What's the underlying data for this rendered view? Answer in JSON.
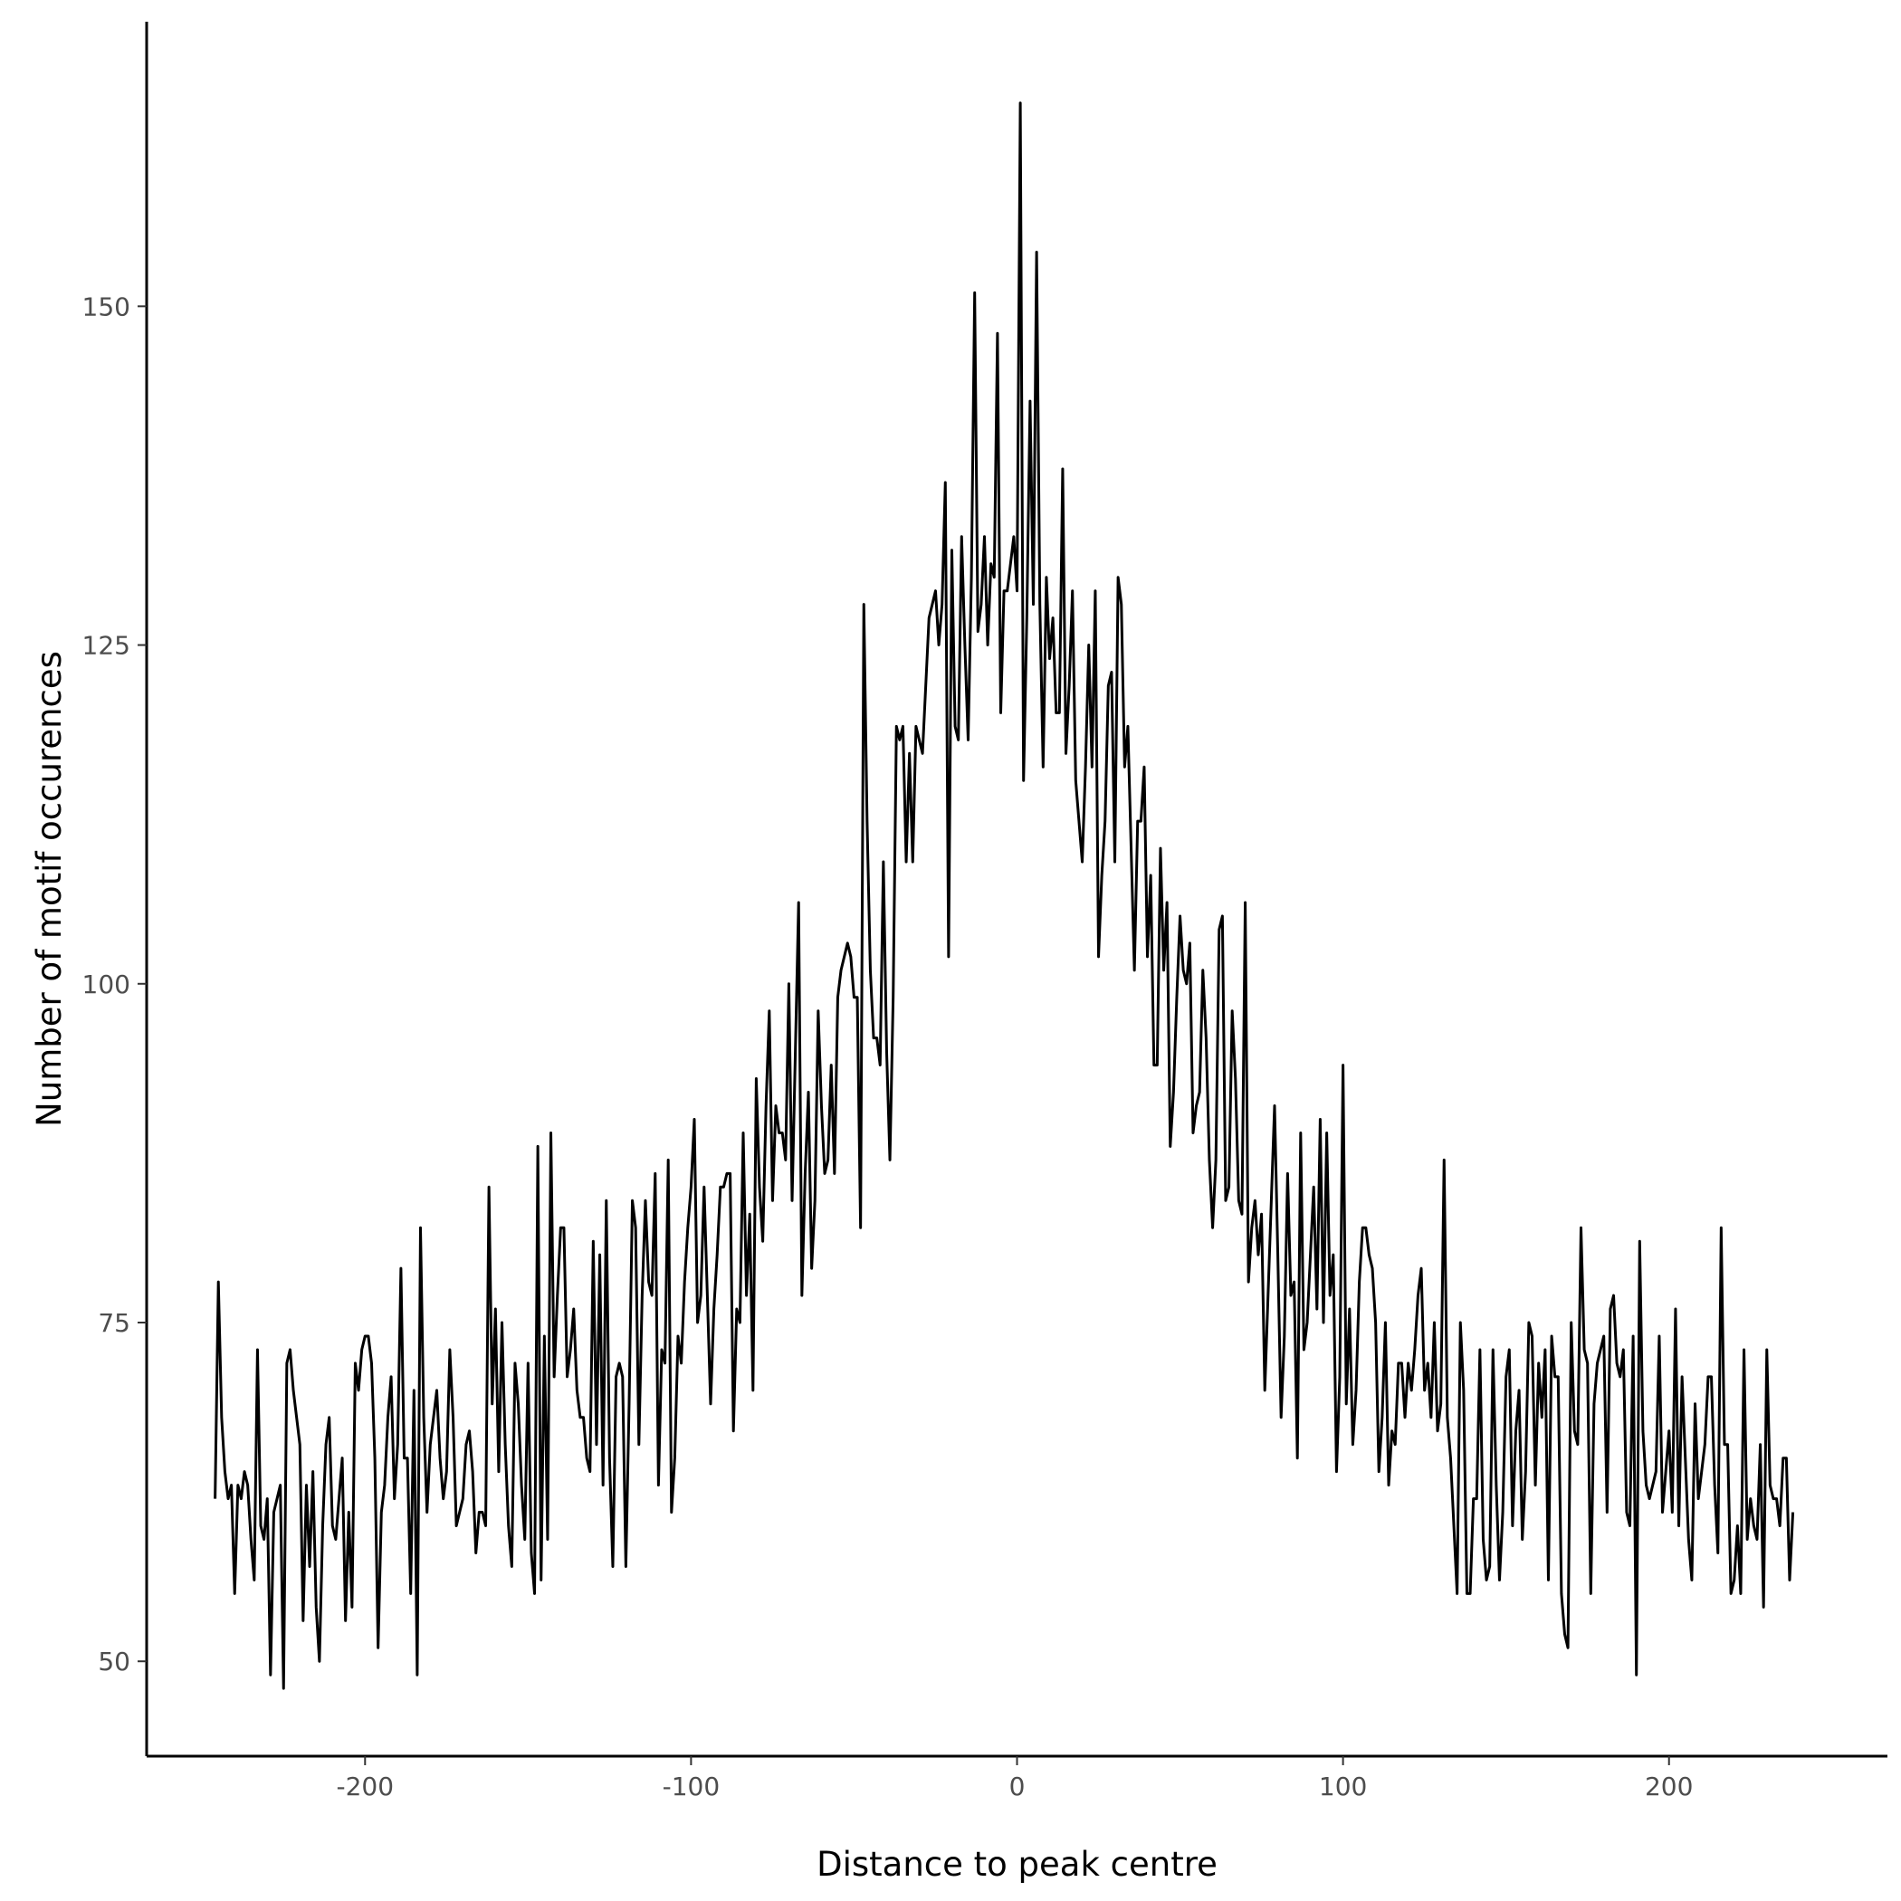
{
  "chart_data": {
    "type": "line",
    "title": "",
    "xlabel": "Distance to peak centre",
    "ylabel": "Number of motif occurences",
    "xlim": [
      -267,
      267
    ],
    "ylim": [
      43,
      171
    ],
    "x_ticks": [
      -200,
      -100,
      0,
      100,
      200
    ],
    "x_tick_labels": [
      "-200",
      "-100",
      "0",
      "100",
      "200"
    ],
    "y_ticks": [
      50,
      75,
      100,
      125,
      150
    ],
    "y_tick_labels": [
      "50",
      "75",
      "100",
      "125",
      "150"
    ],
    "grid": false,
    "legend": "none",
    "line_color": "#000000",
    "series": [
      {
        "x_start": -246,
        "x_step": 1,
        "values": [
          62,
          78,
          68,
          64,
          62,
          63,
          55,
          63,
          62,
          64,
          63,
          59,
          56,
          73,
          60,
          59,
          62,
          49,
          61,
          62,
          63,
          48,
          72,
          73,
          70,
          68,
          66,
          53,
          63,
          57,
          64,
          54,
          50,
          60,
          66,
          68,
          60,
          59,
          62,
          65,
          53,
          61,
          54,
          72,
          70,
          73,
          74,
          74,
          72,
          65,
          51,
          61,
          63,
          68,
          71,
          62,
          66,
          79,
          65,
          65,
          55,
          70,
          49,
          82,
          68,
          61,
          66,
          68,
          70,
          65,
          62,
          64,
          73,
          68,
          60,
          61,
          62,
          66,
          67,
          64,
          58,
          61,
          61,
          60,
          85,
          69,
          76,
          64,
          75,
          66,
          60,
          57,
          72,
          69,
          63,
          59,
          72,
          58,
          55,
          88,
          56,
          74,
          59,
          89,
          71,
          77,
          82,
          82,
          71,
          73,
          76,
          70,
          68,
          68,
          65,
          64,
          81,
          66,
          80,
          63,
          84,
          65,
          57,
          71,
          72,
          71,
          57,
          69,
          84,
          82,
          66,
          77,
          84,
          78,
          77,
          86,
          63,
          73,
          72,
          87,
          61,
          65,
          74,
          72,
          78,
          82,
          85,
          90,
          75,
          77,
          85,
          77,
          69,
          76,
          80,
          85,
          85,
          86,
          86,
          67,
          76,
          75,
          89,
          77,
          83,
          70,
          93,
          85,
          81,
          91,
          98,
          84,
          91,
          89,
          89,
          87,
          100,
          84,
          95,
          106,
          77,
          86,
          92,
          79,
          84,
          98,
          91,
          86,
          87,
          94,
          86,
          99,
          101,
          102,
          103,
          102,
          99,
          99,
          82,
          128,
          112,
          101,
          96,
          96,
          94,
          109,
          95,
          87,
          99,
          119,
          118,
          119,
          109,
          117,
          109,
          119,
          118,
          117,
          122,
          127,
          128,
          129,
          125,
          128,
          137,
          102,
          132,
          119,
          118,
          133,
          125,
          118,
          130,
          151,
          126,
          128,
          133,
          125,
          131,
          130,
          148,
          120,
          129,
          129,
          131,
          133,
          129,
          165,
          115,
          127,
          143,
          128,
          154,
          128,
          116,
          130,
          124,
          127,
          120,
          120,
          138,
          117,
          122,
          129,
          115,
          112,
          109,
          116,
          125,
          116,
          129,
          102,
          108,
          112,
          122,
          123,
          109,
          130,
          128,
          116,
          119,
          110,
          101,
          112,
          112,
          116,
          102,
          108,
          94,
          94,
          110,
          101,
          106,
          88,
          92,
          99,
          105,
          101,
          100,
          103,
          89,
          91,
          92,
          101,
          96,
          87,
          82,
          87,
          104,
          105,
          84,
          85,
          98,
          93,
          84,
          83,
          106,
          78,
          82,
          84,
          80,
          83,
          70,
          77,
          84,
          91,
          80,
          68,
          74,
          86,
          77,
          78,
          65,
          89,
          73,
          75,
          80,
          85,
          76,
          90,
          75,
          89,
          77,
          80,
          64,
          71,
          94,
          69,
          76,
          66,
          70,
          78,
          82,
          82,
          80,
          79,
          75,
          64,
          68,
          75,
          63,
          67,
          66,
          72,
          72,
          68,
          72,
          70,
          73,
          77,
          79,
          70,
          72,
          68,
          75,
          67,
          69,
          87,
          68,
          65,
          60,
          55,
          75,
          70,
          55,
          55,
          62,
          62,
          73,
          59,
          56,
          57,
          73,
          63,
          56,
          61,
          71,
          73,
          60,
          67,
          70,
          59,
          64,
          75,
          74,
          63,
          72,
          68,
          73,
          56,
          74,
          71,
          71,
          55,
          52,
          51,
          75,
          67,
          66,
          82,
          73,
          72,
          55,
          69,
          72,
          73,
          74,
          61,
          76,
          77,
          72,
          71,
          73,
          61,
          60,
          74,
          49,
          81,
          67,
          63,
          62,
          63,
          64,
          74,
          61,
          64,
          67,
          61,
          76,
          60,
          71,
          65,
          59,
          56,
          69,
          62,
          64,
          66,
          71,
          71,
          63,
          58,
          82,
          66,
          66,
          55,
          56,
          60,
          55,
          73,
          59,
          62,
          60,
          59,
          66,
          54,
          73,
          63,
          62,
          62,
          60,
          65,
          65,
          56,
          61
        ]
      }
    ]
  }
}
